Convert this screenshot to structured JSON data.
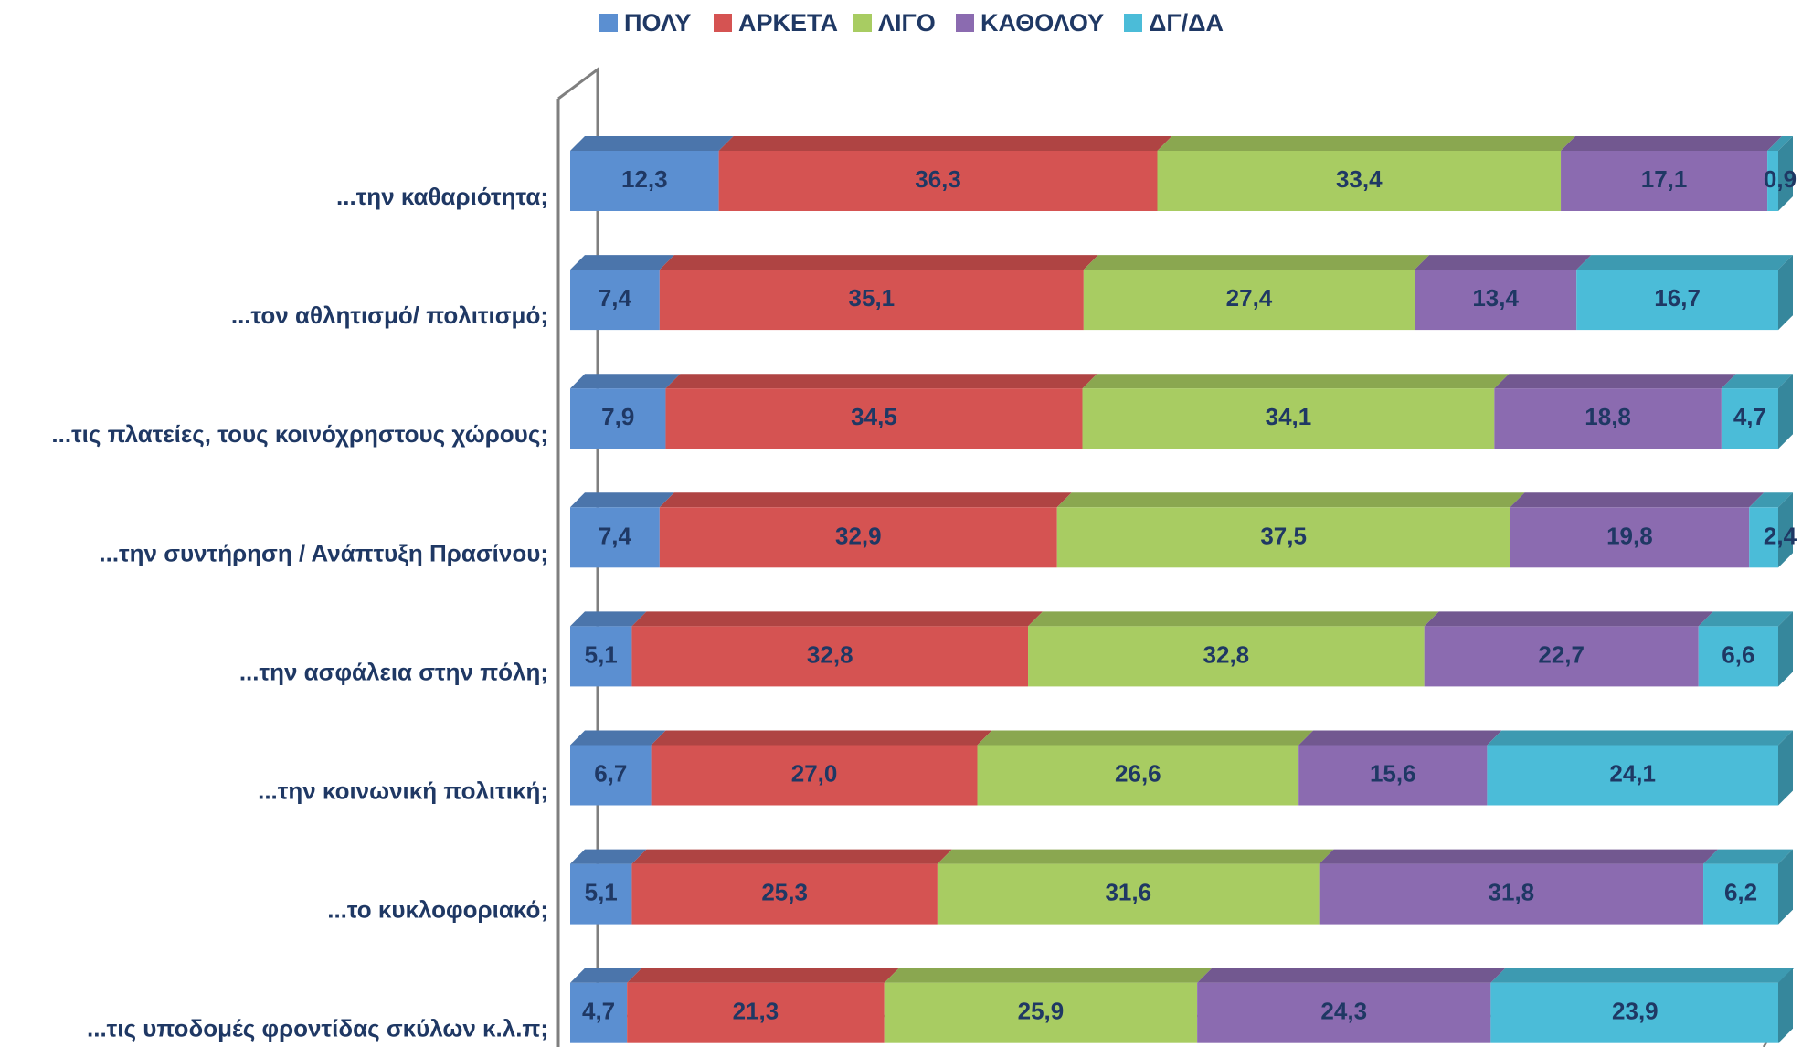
{
  "chart_data": {
    "type": "bar",
    "orientation": "horizontal",
    "stacked": "100%",
    "style": "3d",
    "legend_position": "top",
    "grid": false,
    "title": "",
    "xlabel": "",
    "ylabel": "",
    "categories": [
      "...την καθαριότητα;",
      "...τον αθλητισμό/ πολιτισμό;",
      "...τις πλατείες, τους κοινόχρηστους χώρους;",
      "...την συντήρηση / Ανάπτυξη Πρασίνου;",
      "...την ασφάλεια στην πόλη;",
      "...την κοινωνική πολιτική;",
      "...το κυκλοφοριακό;",
      "...τις υποδομές φροντίδας σκύλων κ.λ.π;"
    ],
    "series": [
      {
        "name": "ΠΟΛΥ",
        "color": "#5b8fd1",
        "values": [
          12.3,
          7.4,
          7.9,
          7.4,
          5.1,
          6.7,
          5.1,
          4.7
        ],
        "labels": [
          "12,3",
          "7,4",
          "7,9",
          "7,4",
          "5,1",
          "6,7",
          "5,1",
          "4,7"
        ]
      },
      {
        "name": "ΑΡΚΕΤΑ",
        "color": "#d55352",
        "values": [
          36.3,
          35.1,
          34.5,
          32.9,
          32.8,
          27.0,
          25.3,
          21.3
        ],
        "labels": [
          "36,3",
          "35,1",
          "34,5",
          "32,9",
          "32,8",
          "27,0",
          "25,3",
          "21,3"
        ]
      },
      {
        "name": "ΛΙΓΟ",
        "color": "#a8cc62",
        "values": [
          33.4,
          27.4,
          34.1,
          37.5,
          32.8,
          26.6,
          31.6,
          25.9
        ],
        "labels": [
          "33,4",
          "27,4",
          "34,1",
          "37,5",
          "32,8",
          "26,6",
          "31,6",
          "25,9"
        ]
      },
      {
        "name": "ΚΑΘΟΛΟΥ",
        "color": "#8b6bb0",
        "values": [
          17.1,
          13.4,
          18.8,
          19.8,
          22.7,
          15.6,
          31.8,
          24.3
        ],
        "labels": [
          "17,1",
          "13,4",
          "18,8",
          "19,8",
          "22,7",
          "15,6",
          "31,8",
          "24,3"
        ]
      },
      {
        "name": "ΔΓ/ΔΑ",
        "color": "#4bbcd8",
        "values": [
          0.9,
          16.7,
          4.7,
          2.4,
          6.6,
          24.1,
          6.2,
          23.9
        ],
        "labels": [
          "0,9",
          "16,7",
          "4,7",
          "2,4",
          "6,6",
          "24,1",
          "6,2",
          "23,9"
        ]
      }
    ]
  }
}
